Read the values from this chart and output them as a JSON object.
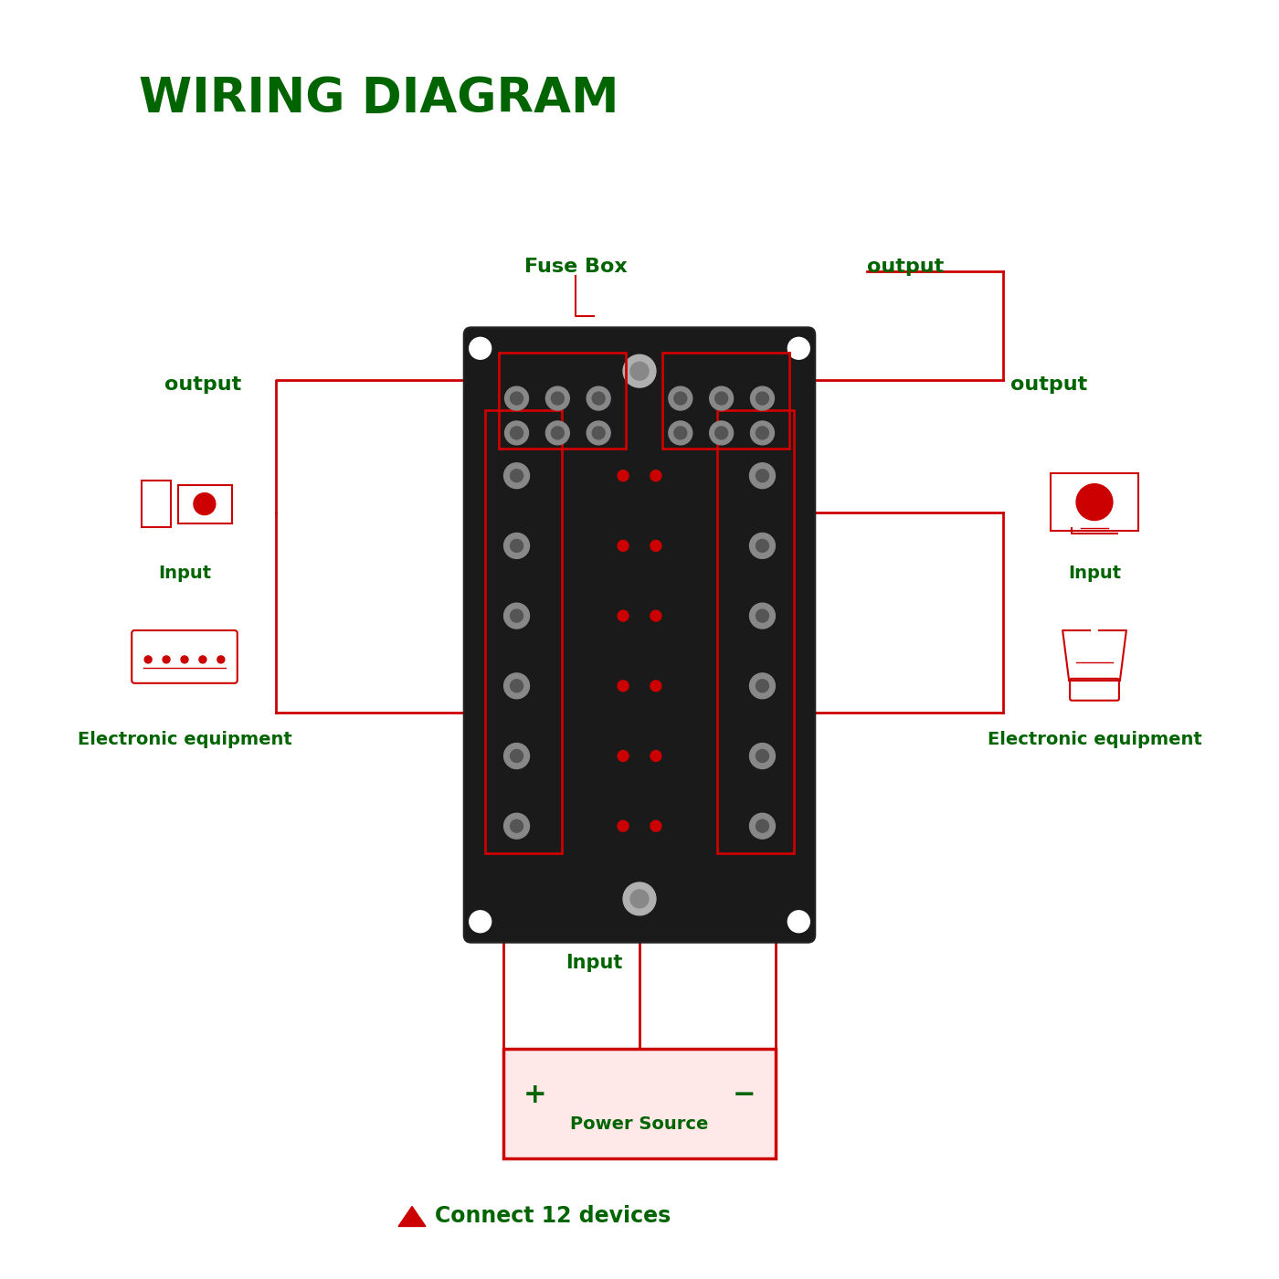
{
  "title": "WIRING DIAGRAM",
  "title_color": "#006400",
  "title_fontsize": 38,
  "bg_color": "#ffffff",
  "red": "#cc0000",
  "green": "#006400",
  "label_fuse_box": "Fuse Box",
  "label_output_top": "output",
  "label_output_left": "output",
  "label_output_right": "output",
  "label_input_left": "Input",
  "label_input_right": "Input",
  "label_input_bottom": "Input",
  "label_eq_left": "Electronic equipment",
  "label_eq_right": "Electronic equipment",
  "label_power": "Power Source",
  "label_connect": "Connect 12 devices",
  "label_plus": "+",
  "label_minus": "−"
}
